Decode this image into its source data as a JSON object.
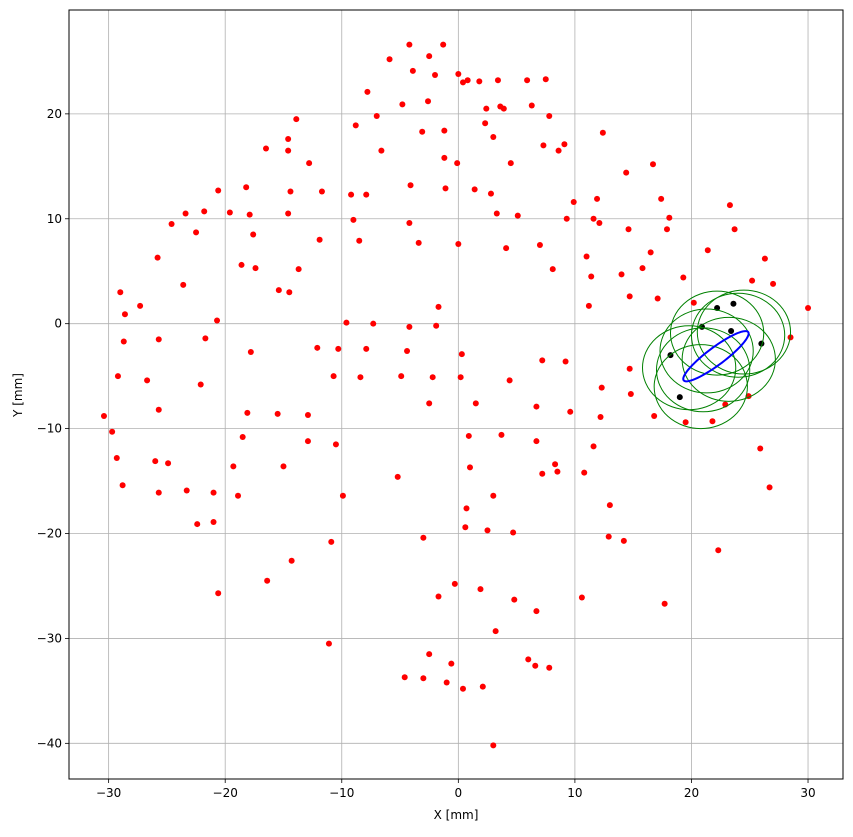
{
  "chart_data": {
    "type": "scatter",
    "xlabel": "X [mm]",
    "ylabel": "Y [mm]",
    "xlim": [
      -33.4,
      33.0
    ],
    "ylim": [
      -43.4,
      29.9
    ],
    "xticks": [
      {
        "value": -30,
        "label": "−30"
      },
      {
        "value": -20,
        "label": "−20"
      },
      {
        "value": -10,
        "label": "−10"
      },
      0,
      10,
      20,
      30
    ],
    "yticks": [
      {
        "value": -40,
        "label": "−40"
      },
      {
        "value": -30,
        "label": "−30"
      },
      {
        "value": -20,
        "label": "−20"
      },
      {
        "value": -10,
        "label": "−10"
      },
      0,
      10,
      20
    ],
    "grid": true,
    "series": [
      {
        "color": "#ff0000",
        "x": [
          -30.4,
          -29.7,
          -29.2,
          -29.3,
          -29.0,
          -28.7,
          -28.8,
          -28.6,
          -27.3,
          -26.7,
          -26.0,
          -25.8,
          -25.7,
          -25.7,
          -25.7,
          -24.9,
          -24.6,
          -23.6,
          -23.4,
          -23.3,
          -22.5,
          -22.4,
          -22.1,
          -21.8,
          -21.7,
          -21.0,
          -21.0,
          -20.7,
          -20.6,
          -20.6,
          -19.6,
          -19.3,
          -18.9,
          -18.6,
          -18.5,
          -18.2,
          -18.1,
          -17.8,
          -17.9,
          -17.6,
          -17.4,
          -16.5,
          -16.4,
          -15.4,
          -15.5,
          -15.0,
          -14.6,
          -14.6,
          -14.6,
          -14.5,
          -14.4,
          -14.3,
          -13.9,
          -13.7,
          -12.9,
          -12.9,
          -12.8,
          -12.1,
          -11.9,
          -11.7,
          -11.1,
          -10.9,
          -10.7,
          -10.5,
          -10.3,
          -9.9,
          -9.6,
          -9.2,
          -9.0,
          -8.8,
          -8.5,
          -8.4,
          -7.9,
          -7.9,
          -7.8,
          -7.3,
          -7.0,
          -6.6,
          -5.9,
          -5.2,
          -4.9,
          -4.8,
          -4.6,
          -4.4,
          -4.2,
          -4.2,
          -4.2,
          -4.1,
          -3.9,
          -3.4,
          -3.1,
          -3.0,
          -3.0,
          -2.6,
          -2.5,
          -2.5,
          -2.5,
          -2.2,
          -2.0,
          -1.9,
          -1.7,
          -1.7,
          -1.3,
          -1.2,
          -1.2,
          -1.1,
          -1.0,
          -0.6,
          -0.3,
          -0.1,
          0.0,
          0.0,
          0.2,
          0.3,
          0.4,
          0.4,
          0.6,
          0.7,
          0.8,
          0.9,
          1.0,
          1.4,
          1.5,
          1.8,
          1.9,
          2.1,
          2.3,
          2.4,
          2.5,
          2.8,
          3.0,
          3.0,
          3.2,
          3.3,
          3.4,
          3.6,
          3.7,
          3.9,
          3.0,
          4.1,
          4.4,
          4.5,
          4.7,
          4.8,
          5.1,
          5.9,
          6.0,
          6.3,
          6.6,
          6.7,
          6.7,
          6.7,
          7.0,
          7.2,
          7.2,
          7.3,
          7.5,
          7.8,
          7.8,
          8.1,
          8.3,
          8.5,
          8.6,
          9.1,
          9.2,
          9.3,
          9.6,
          9.9,
          10.6,
          10.8,
          11.0,
          11.2,
          11.4,
          11.6,
          11.6,
          11.9,
          12.1,
          12.2,
          12.3,
          12.4,
          12.9,
          13.0,
          14.0,
          14.2,
          14.4,
          14.6,
          14.7,
          14.7,
          14.8,
          15.8,
          16.5,
          16.7,
          16.8,
          17.1,
          17.4,
          17.7,
          17.9,
          18.1,
          19.3,
          19.5,
          20.2,
          21.4,
          21.8,
          22.3,
          22.9,
          23.3,
          23.7,
          24.9,
          25.2,
          25.9,
          26.3,
          26.7,
          27.0,
          28.5,
          30.0
        ],
        "values": [
          -8.8,
          -10.3,
          -5.0,
          -12.8,
          3.0,
          -1.7,
          -15.4,
          0.9,
          1.7,
          -5.4,
          -13.1,
          6.3,
          -1.5,
          -16.1,
          -8.2,
          -13.3,
          9.5,
          3.7,
          10.5,
          -15.9,
          8.7,
          -19.1,
          -5.8,
          10.7,
          -1.4,
          -16.1,
          -18.9,
          0.3,
          12.7,
          -25.7,
          10.6,
          -13.6,
          -16.4,
          5.6,
          -10.8,
          13.0,
          -8.5,
          -2.7,
          10.4,
          8.5,
          5.3,
          16.7,
          -24.5,
          3.2,
          -8.6,
          -13.6,
          17.6,
          16.5,
          10.5,
          3.0,
          12.6,
          -22.6,
          19.5,
          5.2,
          -8.7,
          -11.2,
          15.3,
          -2.3,
          8.0,
          12.6,
          -30.5,
          -20.8,
          -5.0,
          -11.5,
          -2.4,
          -16.4,
          0.1,
          12.3,
          9.9,
          18.9,
          7.9,
          -5.1,
          12.3,
          -2.4,
          22.1,
          0.0,
          19.8,
          16.5,
          25.2,
          -14.6,
          -5.0,
          20.9,
          -33.7,
          -2.6,
          9.6,
          -0.3,
          26.6,
          13.2,
          24.1,
          7.7,
          18.3,
          -33.8,
          -20.4,
          21.2,
          25.5,
          -31.5,
          -7.6,
          -5.1,
          23.7,
          -0.2,
          1.6,
          -26.0,
          26.6,
          15.8,
          18.4,
          12.9,
          -34.2,
          -32.4,
          -24.8,
          15.3,
          23.8,
          7.6,
          -5.1,
          -2.9,
          23.0,
          -34.8,
          -19.4,
          -17.6,
          23.2,
          -10.7,
          -13.7,
          12.8,
          -7.6,
          23.1,
          -25.3,
          -34.6,
          19.1,
          20.5,
          -19.7,
          12.4,
          -16.4,
          17.8,
          -29.3,
          10.5,
          23.2,
          20.7,
          -10.6,
          20.5,
          -40.2,
          7.2,
          -5.4,
          15.3,
          -19.9,
          -26.3,
          10.3,
          23.2,
          -32.0,
          20.8,
          -32.6,
          -7.9,
          -11.2,
          -27.4,
          7.5,
          -3.5,
          -14.3,
          17.0,
          23.3,
          19.8,
          -32.8,
          5.2,
          -13.4,
          -14.1,
          16.5,
          17.1,
          -3.6,
          10.0,
          -8.4,
          11.6,
          -26.1,
          -14.2,
          6.4,
          1.7,
          4.5,
          10.0,
          -11.7,
          11.9,
          9.6,
          -8.9,
          -6.1,
          18.2,
          -20.3,
          -17.3,
          4.7,
          -20.7,
          14.4,
          9.0,
          2.6,
          -4.3,
          -6.7,
          5.3,
          6.8,
          15.2,
          -8.8,
          2.4,
          11.9,
          -26.7,
          9.0,
          10.1,
          4.4,
          -9.4,
          2.0,
          7.0,
          -9.3,
          -21.6,
          -7.7,
          11.3,
          9.0,
          -6.9,
          4.1,
          -11.9,
          6.2,
          -15.6,
          3.8,
          -1.3,
          1.5
        ]
      },
      {
        "color": "#000000",
        "x": [
          18.2,
          19.0,
          20.9,
          22.2,
          23.6,
          23.4,
          26.0
        ],
        "values": [
          -3.0,
          -7.0,
          -0.3,
          1.5,
          1.9,
          -0.7,
          -1.9
        ]
      }
    ],
    "circles": {
      "color": "#008000",
      "r": 4,
      "x": [
        19.8,
        20.8,
        21.3,
        22.2,
        23.2,
        24.0,
        24.5,
        21.0
      ],
      "y": [
        -4.2,
        -6.0,
        -2.6,
        -0.9,
        -3.4,
        -1.1,
        -0.8,
        -4.4
      ]
    },
    "ellipse": {
      "color": "#0000ff",
      "center": [
        22.1,
        -3.1
      ],
      "a": 3.6,
      "b": 0.8,
      "angle": 40
    }
  }
}
